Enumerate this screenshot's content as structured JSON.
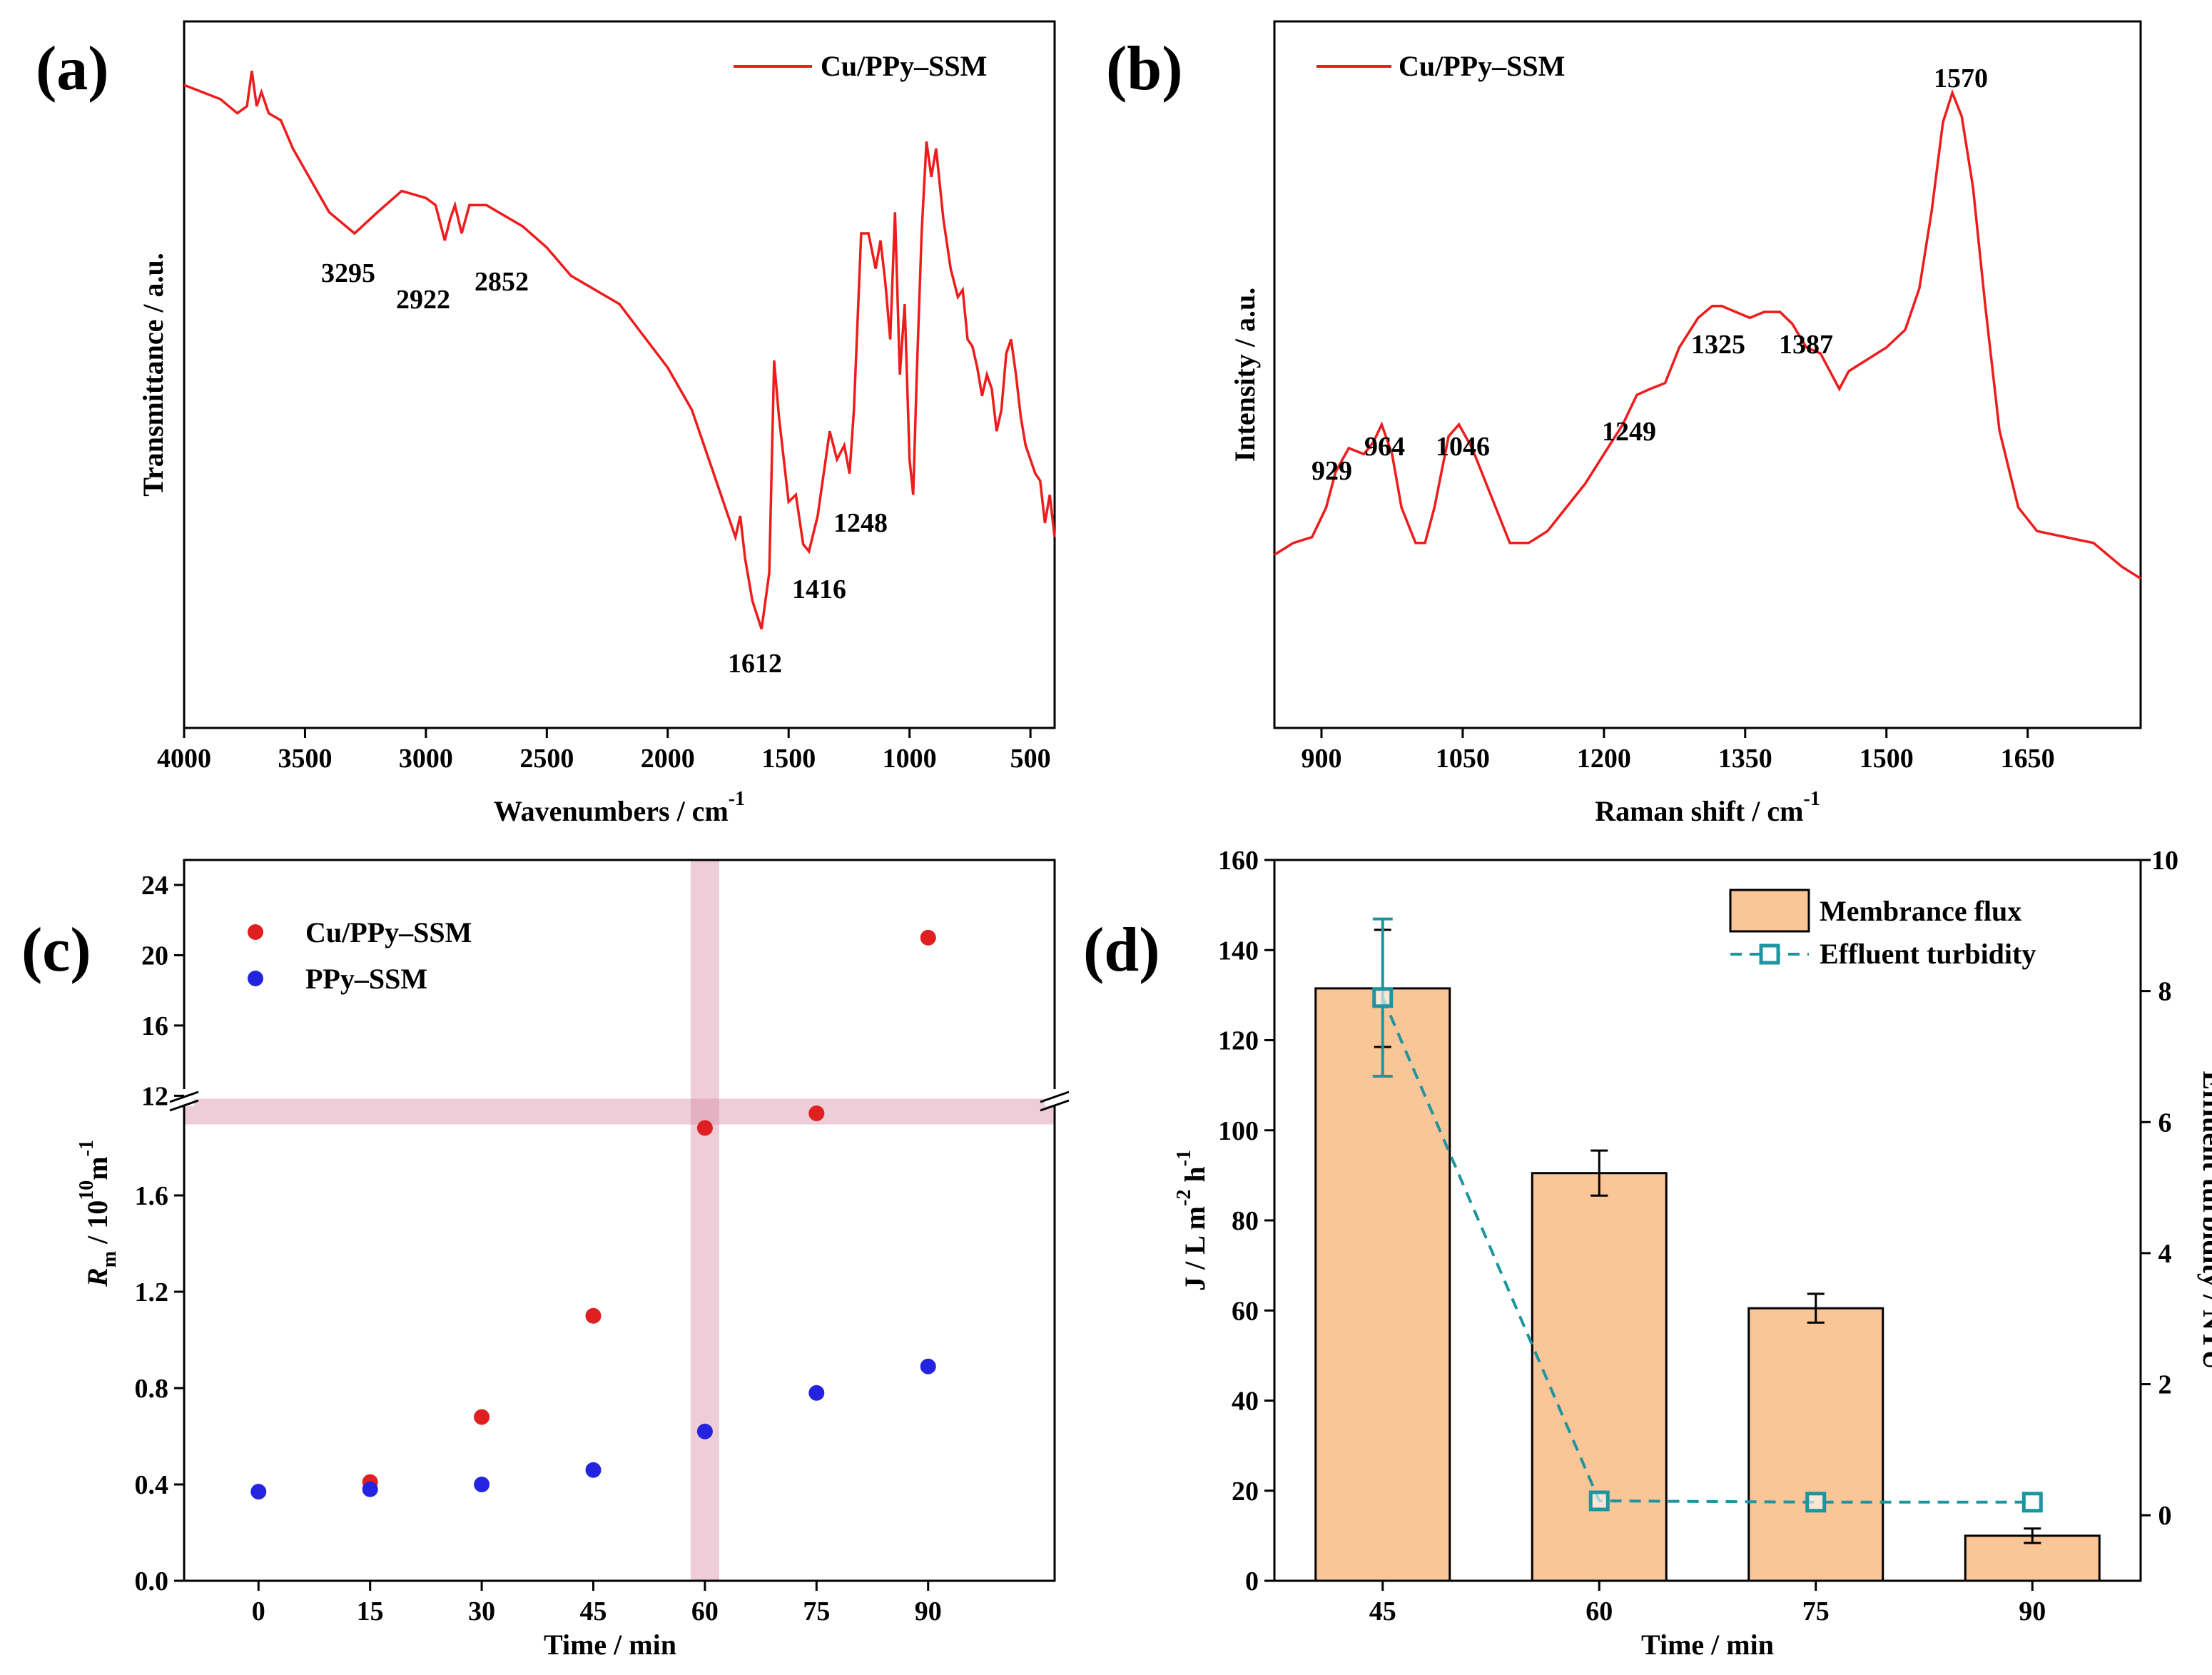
{
  "figure": {
    "panel_labels": [
      "(a)",
      "(b)",
      "(c)",
      "(d)"
    ]
  },
  "chart_data": [
    {
      "panel": "(a)",
      "type": "line",
      "xlabel": "Wavenumbers / cm",
      "xlabel_sup": "-1",
      "ylabel": "Transmittance / a.u.",
      "xlim": [
        4000,
        400
      ],
      "xticks": [
        4000,
        3500,
        3000,
        2500,
        2000,
        1500,
        1000,
        500
      ],
      "yticks_shown": false,
      "ylim": [
        0,
        1
      ],
      "legend": {
        "position": "top-right",
        "entries": [
          {
            "name": "Cu/PPy–SSM",
            "color": "#ee1c1c"
          }
        ]
      },
      "series": [
        {
          "name": "Cu/PPy–SSM",
          "color": "#ee1c1c",
          "x": [
            4000,
            3850,
            3780,
            3740,
            3720,
            3700,
            3680,
            3650,
            3600,
            3550,
            3500,
            3400,
            3295,
            3200,
            3100,
            3000,
            2960,
            2922,
            2900,
            2880,
            2852,
            2820,
            2750,
            2600,
            2500,
            2400,
            2200,
            2000,
            1900,
            1800,
            1720,
            1700,
            1680,
            1650,
            1612,
            1580,
            1560,
            1540,
            1500,
            1470,
            1440,
            1416,
            1380,
            1330,
            1300,
            1270,
            1248,
            1230,
            1200,
            1170,
            1140,
            1120,
            1100,
            1080,
            1060,
            1040,
            1020,
            1000,
            985,
            970,
            950,
            930,
            910,
            890,
            860,
            830,
            800,
            780,
            760,
            740,
            720,
            700,
            680,
            660,
            640,
            620,
            600,
            580,
            560,
            540,
            520,
            500,
            480,
            460,
            440,
            420,
            400
          ],
          "y": [
            0.91,
            0.89,
            0.87,
            0.88,
            0.93,
            0.88,
            0.9,
            0.87,
            0.86,
            0.82,
            0.79,
            0.73,
            0.7,
            0.73,
            0.76,
            0.75,
            0.74,
            0.69,
            0.72,
            0.74,
            0.7,
            0.74,
            0.74,
            0.71,
            0.68,
            0.64,
            0.6,
            0.51,
            0.45,
            0.35,
            0.27,
            0.3,
            0.24,
            0.18,
            0.14,
            0.22,
            0.52,
            0.44,
            0.32,
            0.33,
            0.26,
            0.25,
            0.3,
            0.42,
            0.38,
            0.4,
            0.36,
            0.45,
            0.7,
            0.7,
            0.65,
            0.69,
            0.63,
            0.55,
            0.73,
            0.5,
            0.6,
            0.38,
            0.33,
            0.5,
            0.7,
            0.83,
            0.78,
            0.82,
            0.72,
            0.65,
            0.61,
            0.62,
            0.55,
            0.54,
            0.51,
            0.47,
            0.5,
            0.48,
            0.42,
            0.45,
            0.53,
            0.55,
            0.5,
            0.44,
            0.4,
            0.38,
            0.36,
            0.35,
            0.29,
            0.33,
            0.27
          ]
        }
      ],
      "peak_labels": [
        "3295",
        "2922",
        "2852",
        "1612",
        "1416",
        "1248"
      ]
    },
    {
      "panel": "(b)",
      "type": "line",
      "xlabel": "Raman shift / cm",
      "xlabel_sup": "-1",
      "ylabel": "Intensity / a.u.",
      "xlim": [
        850,
        1770
      ],
      "xticks": [
        900,
        1050,
        1200,
        1350,
        1500,
        1650
      ],
      "yticks_shown": false,
      "ylim": [
        0,
        1
      ],
      "legend": {
        "position": "top-left",
        "entries": [
          {
            "name": "Cu/PPy–SSM",
            "color": "#ee1c1c"
          }
        ]
      },
      "series": [
        {
          "name": "Cu/PPy–SSM",
          "color": "#ee1c1c",
          "x": [
            850,
            870,
            890,
            905,
            915,
            929,
            945,
            955,
            964,
            975,
            985,
            1000,
            1010,
            1020,
            1035,
            1046,
            1060,
            1080,
            1100,
            1120,
            1140,
            1160,
            1180,
            1200,
            1220,
            1235,
            1249,
            1265,
            1280,
            1300,
            1315,
            1325,
            1340,
            1355,
            1370,
            1387,
            1400,
            1415,
            1430,
            1440,
            1450,
            1460,
            1480,
            1500,
            1520,
            1535,
            1548,
            1560,
            1570,
            1580,
            1592,
            1605,
            1620,
            1640,
            1660,
            1690,
            1720,
            1750,
            1770
          ],
          "y": [
            0.22,
            0.24,
            0.25,
            0.3,
            0.36,
            0.4,
            0.39,
            0.41,
            0.44,
            0.39,
            0.3,
            0.24,
            0.24,
            0.3,
            0.42,
            0.44,
            0.4,
            0.32,
            0.24,
            0.24,
            0.26,
            0.3,
            0.34,
            0.39,
            0.44,
            0.49,
            0.5,
            0.51,
            0.57,
            0.62,
            0.64,
            0.64,
            0.63,
            0.62,
            0.63,
            0.63,
            0.61,
            0.57,
            0.56,
            0.53,
            0.5,
            0.53,
            0.55,
            0.57,
            0.6,
            0.67,
            0.8,
            0.95,
            1.0,
            0.96,
            0.84,
            0.64,
            0.43,
            0.3,
            0.26,
            0.25,
            0.24,
            0.2,
            0.18
          ]
        }
      ],
      "peak_labels": [
        "929",
        "964",
        "1046",
        "1249",
        "1325",
        "1387",
        "1570"
      ]
    },
    {
      "panel": "(c)",
      "type": "scatter",
      "xlabel": "Time / min",
      "ylabel_main": "R",
      "ylabel_sub": "m",
      "ylabel_rest": " / 10",
      "ylabel_sup": "10",
      "ylabel_tail": "m",
      "ylabel_sup2": "-1",
      "x_categories": [
        0,
        15,
        30,
        45,
        60,
        75,
        90
      ],
      "y_axis_break": {
        "lower_range": [
          0.0,
          2.0
        ],
        "upper_range": [
          11.0,
          24.0
        ]
      },
      "yticks_lower": [
        "0.0",
        "0.4",
        "0.8",
        "1.2",
        "1.6"
      ],
      "yticks_upper": [
        "12",
        "16",
        "20",
        "24"
      ],
      "legend": {
        "position": "top-left",
        "entries": [
          {
            "name": "Cu/PPy–SSM",
            "color": "#e02020"
          },
          {
            "name": "PPy–SSM",
            "color": "#2424e0"
          }
        ]
      },
      "highlight": {
        "vertical_at_x": 60,
        "horizontal_at_y": 11.1,
        "color": "#d98fa9"
      },
      "series": [
        {
          "name": "Cu/PPy–SSM",
          "color": "#e02020",
          "x": [
            15,
            30,
            45,
            60,
            75,
            90
          ],
          "y": [
            0.41,
            0.68,
            1.1,
            1.88,
            11,
            21
          ]
        },
        {
          "name": "PPy–SSM",
          "color": "#2424e0",
          "x": [
            0,
            15,
            30,
            45,
            60,
            75,
            90
          ],
          "y": [
            0.37,
            0.38,
            0.4,
            0.46,
            0.62,
            0.78,
            0.89
          ]
        }
      ]
    },
    {
      "panel": "(d)",
      "type": "bar",
      "xlabel": "Time / min",
      "ylabel_left_main": "J / L m",
      "ylabel_left_sup1": "-2",
      "ylabel_left_mid": " h",
      "ylabel_left_sup2": "-1",
      "ylabel_right": "Effluent turbidity / NTU",
      "categories": [
        "45",
        "60",
        "75",
        "90"
      ],
      "ylim_left": [
        0,
        160
      ],
      "yticks_left": [
        0,
        20,
        40,
        60,
        80,
        100,
        120,
        140,
        160
      ],
      "ylim_right": [
        -1,
        10
      ],
      "yticks_right": [
        0,
        2,
        4,
        6,
        8,
        10
      ],
      "legend": {
        "position": "top-right",
        "entries": [
          {
            "name": "Membrance flux",
            "color": "#fac597"
          },
          {
            "name": "Effluent turbidity",
            "color": "#1d95a0"
          }
        ]
      },
      "series": [
        {
          "name": "Membrance flux",
          "axis": "left",
          "color": "#fac597",
          "values": [
            131.5,
            90.5,
            60.5,
            10
          ],
          "errors": [
            13,
            5,
            3.2,
            1.6
          ]
        },
        {
          "name": "Effluent turbidity",
          "axis": "right",
          "color": "#1d95a0",
          "values": [
            7.9,
            0.22,
            0.2,
            0.2
          ],
          "errors": [
            1.2,
            0,
            0,
            0
          ]
        }
      ]
    }
  ]
}
